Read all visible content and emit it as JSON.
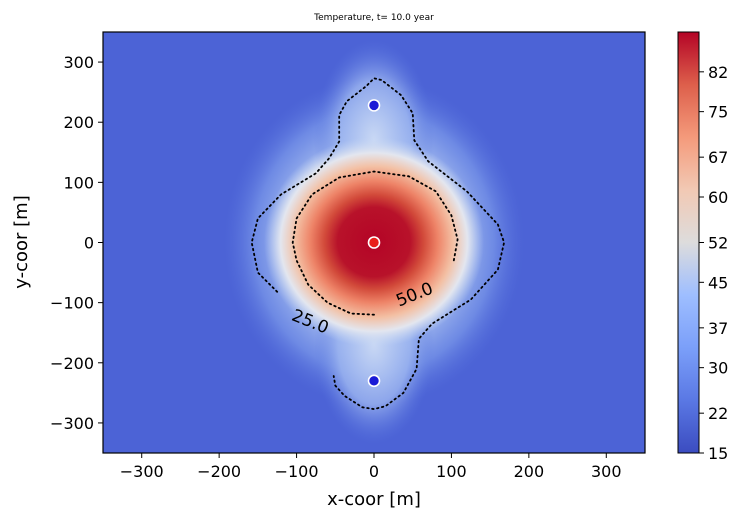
{
  "chart_data": {
    "type": "heatmap",
    "title": "Temperature, t= 10.0 year",
    "xlabel": "x-coor [m]",
    "ylabel": "y-coor [m]",
    "xlim": [
      -350,
      350
    ],
    "ylim": [
      -350,
      350
    ],
    "xticks": [
      -300,
      -200,
      -100,
      0,
      100,
      200,
      300
    ],
    "yticks": [
      -300,
      -200,
      -100,
      0,
      100,
      200,
      300
    ],
    "xtick_labels": [
      "−300",
      "−200",
      "−100",
      "0",
      "100",
      "200",
      "300"
    ],
    "ytick_labels": [
      "−300",
      "−200",
      "−100",
      "0",
      "100",
      "200",
      "300"
    ],
    "colorbar": {
      "min": 15,
      "max": 89,
      "ticks": [
        15,
        22,
        30,
        37,
        45,
        52,
        60,
        67,
        75,
        82
      ],
      "colormap": "coolwarm"
    },
    "field": {
      "background_value": 18,
      "peak_value": 89,
      "peak_center": [
        0,
        0
      ]
    },
    "wells": [
      {
        "x": 0,
        "y": 0,
        "role": "injector",
        "color": "#e8201a"
      },
      {
        "x": 0,
        "y": 228,
        "role": "producer",
        "color": "#1a1ad6"
      },
      {
        "x": 0,
        "y": -230,
        "role": "producer",
        "color": "#1a1ad6"
      }
    ],
    "contours": [
      {
        "level": 25.0,
        "label": "25.0",
        "label_at": [
          -85,
          -140
        ],
        "label_rotation": 22,
        "points": [
          [
            -125,
            -82
          ],
          [
            -150,
            -50
          ],
          [
            -158,
            0
          ],
          [
            -150,
            40
          ],
          [
            -120,
            80
          ],
          [
            -75,
            115
          ],
          [
            -58,
            140
          ],
          [
            -45,
            168
          ],
          [
            -45,
            212
          ],
          [
            -35,
            235
          ],
          [
            -10,
            260
          ],
          [
            0,
            273
          ],
          [
            10,
            270
          ],
          [
            35,
            245
          ],
          [
            50,
            215
          ],
          [
            52,
            170
          ],
          [
            70,
            135
          ],
          [
            120,
            85
          ],
          [
            160,
            30
          ],
          [
            168,
            0
          ],
          [
            160,
            -45
          ],
          [
            125,
            -95
          ],
          [
            75,
            -135
          ],
          [
            58,
            -160
          ],
          [
            55,
            -210
          ],
          [
            38,
            -250
          ],
          [
            15,
            -272
          ],
          [
            0,
            -277
          ],
          [
            -15,
            -274
          ],
          [
            -38,
            -255
          ],
          [
            -50,
            -238
          ],
          [
            -52,
            -222
          ]
        ]
      },
      {
        "level": 50.0,
        "label": "50.0",
        "label_at": [
          55,
          -95
        ],
        "label_rotation": -22,
        "points": [
          [
            0,
            -120
          ],
          [
            -30,
            -118
          ],
          [
            -60,
            -100
          ],
          [
            -85,
            -70
          ],
          [
            -100,
            -30
          ],
          [
            -105,
            0
          ],
          [
            -100,
            40
          ],
          [
            -80,
            80
          ],
          [
            -45,
            108
          ],
          [
            0,
            118
          ],
          [
            45,
            110
          ],
          [
            80,
            85
          ],
          [
            100,
            45
          ],
          [
            108,
            5
          ],
          [
            103,
            -30
          ]
        ]
      }
    ]
  }
}
